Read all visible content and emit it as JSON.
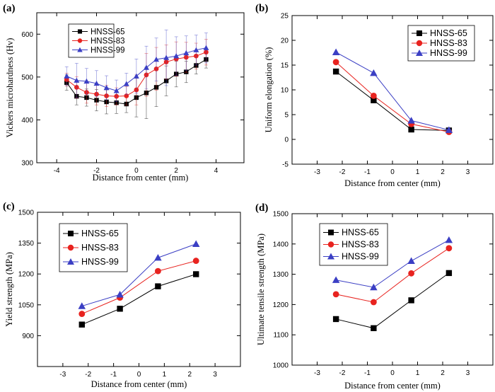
{
  "colors": {
    "HNSS-65": "#000000",
    "HNSS-83": "#e8231f",
    "HNSS-99": "#3b3fc4"
  },
  "chart_data": [
    {
      "type": "line",
      "panel": "(a)",
      "xlabel": "Distance from center (mm)",
      "ylabel": "Vickers microhardness (Hv)",
      "xlim": [
        -5,
        5.4
      ],
      "ylim": [
        300,
        650
      ],
      "xticks": [
        -4,
        -2,
        0,
        2,
        4
      ],
      "yticks": [
        300,
        400,
        500,
        600
      ],
      "error_bars": true,
      "legend": "top-left",
      "x": [
        -3.5,
        -3.0,
        -2.5,
        -2.0,
        -1.5,
        -1.0,
        -0.5,
        0.0,
        0.5,
        1.0,
        1.5,
        2.0,
        2.5,
        3.0,
        3.5
      ],
      "series": [
        {
          "name": "HNSS-65",
          "marker": "square",
          "values": [
            487,
            455,
            452,
            446,
            442,
            440,
            437,
            452,
            463,
            476,
            491,
            507,
            512,
            527,
            541
          ],
          "errors": [
            18,
            20,
            20,
            25,
            28,
            25,
            20,
            45,
            60,
            45,
            35,
            30,
            25,
            20,
            20
          ]
        },
        {
          "name": "HNSS-83",
          "marker": "circle",
          "values": [
            494,
            476,
            464,
            460,
            456,
            455,
            456,
            470,
            505,
            519,
            535,
            542,
            546,
            549,
            558
          ],
          "errors": [
            15,
            25,
            25,
            25,
            25,
            20,
            22,
            35,
            50,
            50,
            40,
            40,
            35,
            30,
            30
          ]
        },
        {
          "name": "HNSS-99",
          "marker": "triangle",
          "values": [
            502,
            492,
            490,
            485,
            475,
            468,
            484,
            502,
            522,
            541,
            545,
            549,
            556,
            563,
            568
          ],
          "errors": [
            22,
            40,
            30,
            30,
            28,
            25,
            25,
            40,
            50,
            50,
            65,
            45,
            40,
            35,
            35
          ]
        }
      ]
    },
    {
      "type": "line",
      "panel": "(b)",
      "xlabel": "Distance from center (mm)",
      "ylabel": "Uniform elongation (%)",
      "xlim": [
        -4,
        4
      ],
      "ylim": [
        -5,
        25
      ],
      "xticks": [
        -3,
        -2,
        -1,
        0,
        1,
        2,
        3
      ],
      "yticks": [
        -5,
        0,
        5,
        10,
        15,
        20,
        25
      ],
      "legend": "top-right",
      "x": [
        -2.25,
        -0.75,
        0.75,
        2.25
      ],
      "series": [
        {
          "name": "HNSS-65",
          "marker": "square",
          "values": [
            13.7,
            7.9,
            2.0,
            1.8
          ]
        },
        {
          "name": "HNSS-83",
          "marker": "circle",
          "values": [
            15.6,
            8.8,
            3.1,
            1.5
          ]
        },
        {
          "name": "HNSS-99",
          "marker": "triangle",
          "values": [
            17.6,
            13.4,
            3.8,
            1.9
          ]
        }
      ]
    },
    {
      "type": "line",
      "panel": "(c)",
      "xlabel": "Distance from center (mm)",
      "ylabel": "Yield strength (MPa)",
      "xlim": [
        -4,
        4
      ],
      "ylim": [
        750,
        1500
      ],
      "xticks": [
        -3,
        -2,
        -1,
        0,
        1,
        2,
        3
      ],
      "yticks": [
        900,
        1050,
        1200,
        1350,
        1500
      ],
      "legend": "top-left",
      "x": [
        -2.25,
        -0.75,
        0.75,
        2.25
      ],
      "series": [
        {
          "name": "HNSS-65",
          "marker": "square",
          "values": [
            954,
            1031,
            1140,
            1199
          ]
        },
        {
          "name": "HNSS-83",
          "marker": "circle",
          "values": [
            1006,
            1085,
            1214,
            1264
          ]
        },
        {
          "name": "HNSS-99",
          "marker": "triangle",
          "values": [
            1044,
            1100,
            1279,
            1346
          ]
        }
      ]
    },
    {
      "type": "line",
      "panel": "(d)",
      "xlabel": "Distance from center (mm)",
      "ylabel": "Ultimate tensile strength (MPa)",
      "xlim": [
        -4,
        4
      ],
      "ylim": [
        1000,
        1500
      ],
      "xticks": [
        -3,
        -2,
        -1,
        0,
        1,
        2,
        3
      ],
      "yticks": [
        1000,
        1100,
        1200,
        1300,
        1400,
        1500
      ],
      "legend": "top-left",
      "x": [
        -2.25,
        -0.75,
        0.75,
        2.25
      ],
      "series": [
        {
          "name": "HNSS-65",
          "marker": "square",
          "values": [
            1152,
            1122,
            1214,
            1304
          ]
        },
        {
          "name": "HNSS-83",
          "marker": "circle",
          "values": [
            1234,
            1208,
            1303,
            1386
          ]
        },
        {
          "name": "HNSS-99",
          "marker": "triangle",
          "values": [
            1281,
            1257,
            1344,
            1413
          ]
        }
      ]
    }
  ]
}
